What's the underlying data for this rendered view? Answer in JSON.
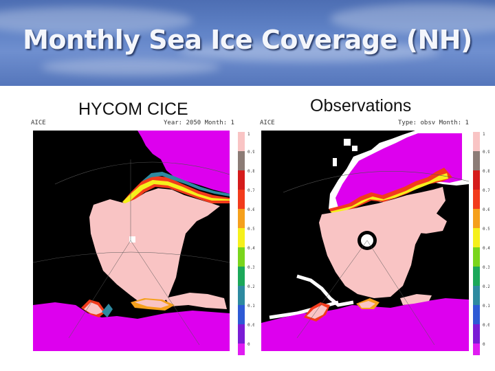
{
  "title": "Monthly Sea Ice Coverage (NH)",
  "panels": [
    {
      "label": "HYCOM CICE",
      "corner_left": "AICE",
      "corner_right": "Year: 2050  Month: 1"
    },
    {
      "label": "Observations",
      "corner_left": "AICE",
      "corner_right": "Type: obsv  Month: 1"
    }
  ],
  "colorbar": {
    "ticks": [
      "1",
      "0.9",
      "0.8",
      "0.7",
      "0.6",
      "0.5",
      "0.4",
      "0.3",
      "0.2",
      "0.1",
      "0.01",
      "0"
    ],
    "colors": [
      "#f9c4c4",
      "#8c7c76",
      "#d51c1c",
      "#f23b1c",
      "#f5a01c",
      "#f5f01c",
      "#7ad51c",
      "#1ca85a",
      "#2e8aa0",
      "#2e5ad5",
      "#7a1cd5",
      "#e01cf2"
    ]
  },
  "colors": {
    "land": "#000000",
    "ocean_open": "#dd00ee",
    "ice_pack": "#f9c4c4",
    "banner": "#5f82c6"
  }
}
